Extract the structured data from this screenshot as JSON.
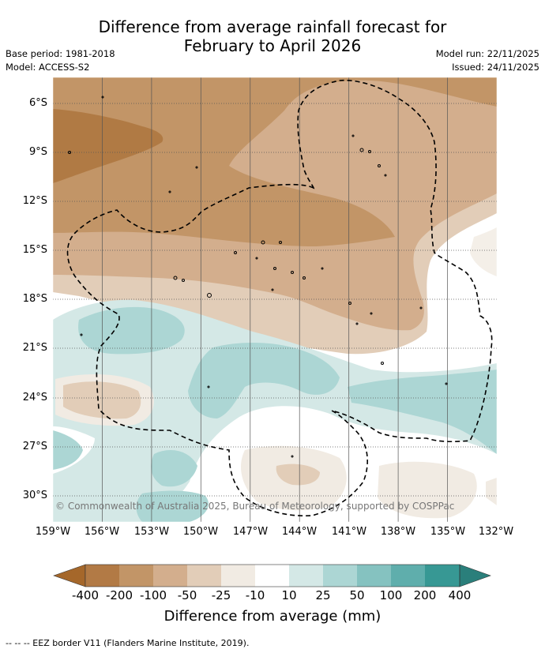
{
  "title_line1": "Difference from average rainfall forecast for",
  "title_line2": "February to April 2026",
  "meta_left": [
    "Base period: 1981-2018",
    "Model: ACCESS-S2"
  ],
  "meta_right": [
    "Model run: 22/11/2025",
    "Issued: 24/11/2025"
  ],
  "lat_labels": [
    "6°S",
    "9°S",
    "12°S",
    "15°S",
    "18°S",
    "21°S",
    "24°S",
    "27°S",
    "30°S"
  ],
  "lon_labels": [
    "159°W",
    "156°W",
    "153°W",
    "150°W",
    "147°W",
    "144°W",
    "141°W",
    "138°W",
    "135°W",
    "132°W"
  ],
  "copyright": "© Commonwealth of Australia 2025, Bureau of Meteorology, supported by COSPPac",
  "colorbar": {
    "title": "Difference from average (mm)",
    "labels": [
      "-400",
      "-200",
      "-100",
      "-50",
      "-25",
      "-10",
      "10",
      "25",
      "50",
      "100",
      "200",
      "400"
    ],
    "colors": [
      "#a5672a",
      "#b27a45",
      "#c29567",
      "#d3ae8d",
      "#e2cdb8",
      "#f1ebe3",
      "#ffffff",
      "#d4e8e6",
      "#acd6d4",
      "#85c2c0",
      "#5faeac",
      "#379894",
      "#2a7f7b"
    ]
  },
  "footer": "-- -- -- EEZ border V11 (Flanders Marine Institute, 2019)."
}
